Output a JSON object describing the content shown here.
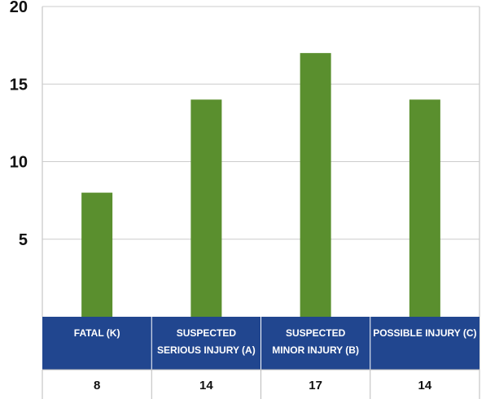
{
  "chart_data": {
    "type": "bar",
    "title": "",
    "xlabel": "",
    "ylabel": "",
    "categories": [
      [
        "FATAL (K)"
      ],
      [
        "SUSPECTED",
        "SERIOUS INJURY (A)"
      ],
      [
        "SUSPECTED",
        "MINOR INJURY (B)"
      ],
      [
        "POSSIBLE INJURY (C)"
      ]
    ],
    "values": [
      8,
      14,
      17,
      14
    ],
    "data_labels": [
      "8",
      "14",
      "17",
      "14"
    ],
    "yticks": [
      5,
      10,
      15,
      20
    ],
    "ylim": [
      0,
      20
    ],
    "grid": true,
    "legend": "none",
    "colors": {
      "bar": "#5a8f2e",
      "category_band": "#21468f",
      "grid": "#cccccc",
      "border": "#bbbbbb"
    }
  }
}
